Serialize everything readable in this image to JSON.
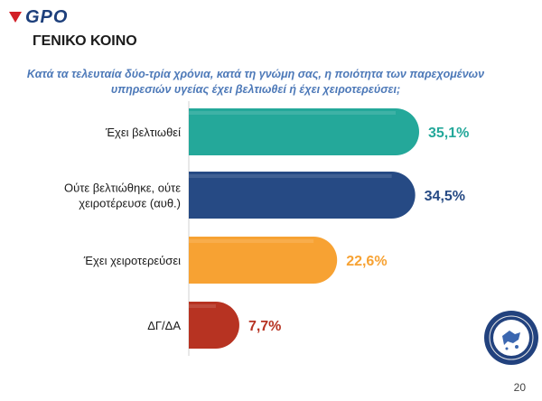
{
  "header": {
    "logo_text": "GPO",
    "section_title": "ΓΕΝΙΚΟ ΚΟΙΝΟ"
  },
  "question": "Κατά τα τελευταία δύο-τρία χρόνια, κατά τη γνώμη σας, η ποιότητα των παρεχομένων υπηρεσιών υγείας έχει βελτιωθεί ή έχει χειροτερεύσει;",
  "page_number": "20",
  "colors": {
    "brand": "#1d3f7b",
    "question": "#4d79b8"
  },
  "chart_data": {
    "type": "bar",
    "orientation": "horizontal",
    "categories": [
      "Έχει βελτιωθεί",
      "Ούτε βελτιώθηκε, ούτε χειροτέρευσε  (αυθ.)",
      "Έχει χειροτερεύσει",
      "ΔΓ/ΔΑ"
    ],
    "values": [
      35.1,
      34.5,
      22.6,
      7.7
    ],
    "value_labels": [
      "35,1%",
      "34,5%",
      "22,6%",
      "7,7%"
    ],
    "colors": [
      "#24a89a",
      "#264a84",
      "#f7a233",
      "#b73322"
    ],
    "value_label_colors": [
      "#24a89a",
      "#264a84",
      "#f7a233",
      "#b73322"
    ],
    "xlim": [
      0,
      40
    ],
    "grid": false,
    "legend": "none"
  }
}
